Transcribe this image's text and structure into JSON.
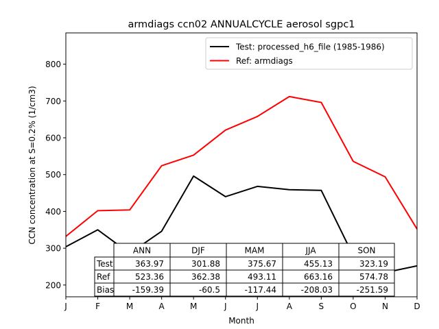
{
  "chart_data": {
    "type": "line",
    "title": "armdiags ccn02 ANNUALCYCLE aerosol sgpc1",
    "xlabel": "Month",
    "ylabel": "CCN concentration at S=0.2% (1/cm3)",
    "x_tick_labels": [
      "J",
      "F",
      "M",
      "A",
      "M",
      "J",
      "J",
      "A",
      "S",
      "O",
      "N",
      "D"
    ],
    "y_ticks": [
      200,
      300,
      400,
      500,
      600,
      700,
      800
    ],
    "ylim": [
      168,
      885
    ],
    "grid": false,
    "legend_position": "top-right",
    "series": [
      {
        "name": "Test: processed_h6_file (1985-1986)",
        "color": "#000000",
        "values": [
          304,
          350,
          286,
          346,
          496,
          440,
          468,
          459,
          457,
          280,
          234,
          252
        ]
      },
      {
        "name": "Ref: armdiags",
        "color": "#ff0000",
        "values": [
          332,
          402,
          404,
          524,
          553,
          621,
          658,
          712,
          696,
          536,
          494,
          352
        ]
      }
    ],
    "table": {
      "columns": [
        "ANN",
        "DJF",
        "MAM",
        "JJA",
        "SON"
      ],
      "rows": [
        {
          "label": "Test",
          "values": [
            "363.97",
            "301.88",
            "375.67",
            "455.13",
            "323.19"
          ]
        },
        {
          "label": "Ref",
          "values": [
            "523.36",
            "362.38",
            "493.11",
            "663.16",
            "574.78"
          ]
        },
        {
          "label": "Bias",
          "values": [
            "-159.39",
            "-60.5",
            "-117.44",
            "-208.03",
            "-251.59"
          ]
        }
      ]
    }
  }
}
